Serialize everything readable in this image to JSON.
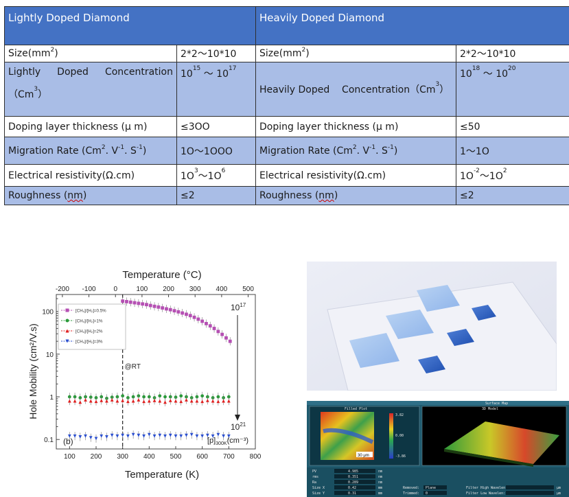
{
  "table": {
    "headers": [
      "Lightly Doped Diamond",
      "Heavily Doped Diamond"
    ],
    "rows": [
      {
        "left_label": "Size(mm",
        "left_label_sup": "2",
        "left_label_tail": ")",
        "left_value": "2*2～10*10",
        "right_label": "Size(mm",
        "right_label_sup": "2",
        "right_label_tail": ")",
        "right_value": "2*2～10*10"
      },
      {
        "left_label_words": [
          "Lightly",
          "Doped",
          "Concentration"
        ],
        "left_unit": "（Cm",
        "left_unit_sup": "3",
        "left_unit_tail": "）",
        "left_value_base1": "10",
        "left_value_sup1": "15",
        "left_value_sep": " ～ ",
        "left_value_base2": "10",
        "left_value_sup2": "17",
        "right_label": "Heavily Doped    Concentration（Cm",
        "right_label_sup": "3",
        "right_label_tail": "）",
        "right_value_base1": "10",
        "right_value_sup1": "18",
        "right_value_sep": " ～ ",
        "right_value_base2": "10",
        "right_value_sup2": "20"
      },
      {
        "left_label": "Doping layer thickness (μ m)",
        "left_value": "≤3OO",
        "right_label": "Doping layer thickness (μ m)",
        "right_value": "≤50"
      },
      {
        "left_label": "Migration Rate (Cm",
        "left_label_sup1": "2",
        "left_label_mid1": ". V",
        "left_label_sup2": "-1",
        "left_label_mid2": ". S",
        "left_label_sup3": "-1",
        "left_label_tail": ")",
        "left_value": "1O～1OOO",
        "right_label": "Migration Rate (Cm",
        "right_label_sup1": "2",
        "right_label_mid1": ". V",
        "right_label_sup2": "-1",
        "right_label_mid2": ". S",
        "right_label_sup3": "-1",
        "right_label_tail": ")",
        "right_value": "1～1O"
      },
      {
        "left_label": "Electrical resistivity(Ω.cm)",
        "left_value_base1": "1O",
        "left_value_sup1": "3",
        "left_value_sep": "～",
        "left_value_base2": "1O",
        "left_value_sup2": "6",
        "right_label": "Electrical resistivity(Ω.cm)",
        "right_value_base1": "1O",
        "right_value_sup1": "-2",
        "right_value_sep": "～",
        "right_value_base2": "1O",
        "right_value_sup2": "2"
      },
      {
        "left_label": "Roughness (",
        "left_label_wavy": "nm",
        "left_label_tail": ")",
        "left_value": "≤2",
        "right_label": "Roughness (",
        "right_label_wavy": "nm",
        "right_label_tail": ")",
        "right_value": "≤2"
      }
    ]
  },
  "chart_data": {
    "type": "scatter",
    "title": "Temperature (°C)",
    "xlabel": "Temperature (K)",
    "ylabel": "Hole  Mobility (cm²/V.s)",
    "top_axis_ticks": [
      -200,
      -100,
      0,
      100,
      200,
      300,
      400,
      500
    ],
    "x_ticks": [
      100,
      200,
      300,
      400,
      500,
      600,
      700,
      800
    ],
    "y_ticks": [
      "0.1",
      "1",
      "10",
      "100"
    ],
    "xlim": [
      50,
      800
    ],
    "ylim_log": [
      0.06,
      250
    ],
    "panel_label": "(b)",
    "rt_annotation": "@RT",
    "rt_x": 300,
    "arrow_top_label": "10",
    "arrow_top_sup": "17",
    "arrow_bottom_label": "10",
    "arrow_bottom_sup": "21",
    "x_note_main": "[p]",
    "x_note_sub": "300K",
    "x_note_unit": "(cm⁻³)",
    "series": [
      {
        "name": "[CH₄]/[H₂]=0.5%",
        "color": "#b54fb3",
        "marker": "square",
        "x": [
          300,
          315,
          330,
          345,
          360,
          375,
          390,
          405,
          420,
          435,
          450,
          465,
          480,
          495,
          510,
          525,
          540,
          555,
          570,
          585,
          600,
          615,
          630,
          645,
          660,
          675,
          690,
          705
        ],
        "y": [
          175,
          170,
          165,
          160,
          155,
          150,
          145,
          138,
          132,
          127,
          121,
          115,
          110,
          104,
          98,
          92,
          86,
          80,
          73,
          66,
          59,
          52,
          46,
          40,
          34,
          29,
          24,
          20
        ]
      },
      {
        "name": "[CH₄]/[H₂]=1%",
        "color": "#2a9a3a",
        "marker": "circle",
        "x": [
          100,
          120,
          140,
          160,
          180,
          200,
          220,
          240,
          260,
          280,
          300,
          320,
          340,
          360,
          380,
          400,
          420,
          440,
          460,
          480,
          500,
          520,
          540,
          560,
          580,
          600,
          620,
          640,
          660,
          680,
          700
        ],
        "y": [
          1.0,
          1.0,
          0.95,
          1.0,
          0.98,
          0.95,
          1.0,
          0.92,
          0.98,
          1.0,
          1.05,
          0.95,
          1.0,
          1.05,
          1.0,
          1.0,
          0.95,
          1.05,
          1.0,
          1.0,
          0.98,
          1.05,
          1.0,
          0.95,
          1.0,
          1.05,
          1.0,
          0.95,
          1.0,
          0.95,
          1.0
        ]
      },
      {
        "name": "[CH₄]/[H₂]=2%",
        "color": "#e02020",
        "marker": "triangle-up",
        "x": [
          100,
          120,
          140,
          160,
          180,
          200,
          220,
          240,
          260,
          280,
          300,
          320,
          340,
          360,
          380,
          400,
          420,
          440,
          460,
          480,
          500,
          520,
          540,
          560,
          580,
          600,
          620,
          640,
          660,
          680,
          700
        ],
        "y": [
          0.8,
          0.8,
          0.75,
          0.85,
          0.8,
          0.78,
          0.82,
          0.8,
          0.85,
          0.8,
          0.82,
          0.78,
          0.8,
          0.85,
          0.78,
          0.8,
          0.82,
          0.8,
          0.75,
          0.82,
          0.8,
          0.78,
          0.85,
          0.8,
          0.8,
          0.78,
          0.82,
          0.8,
          0.78,
          0.8,
          0.8
        ]
      },
      {
        "name": "[CH₄]/[H₂]=3%",
        "color": "#2b4fcf",
        "marker": "triangle-down",
        "x": [
          100,
          120,
          140,
          160,
          180,
          200,
          220,
          240,
          260,
          280,
          300,
          320,
          340,
          360,
          380,
          400,
          420,
          440,
          460,
          480,
          500,
          520,
          540,
          560,
          580,
          600,
          620,
          640,
          660,
          680,
          700
        ],
        "y": [
          0.12,
          0.12,
          0.115,
          0.12,
          0.11,
          0.105,
          0.12,
          0.115,
          0.125,
          0.12,
          0.125,
          0.12,
          0.13,
          0.125,
          0.12,
          0.13,
          0.12,
          0.125,
          0.12,
          0.125,
          0.12,
          0.12,
          0.125,
          0.13,
          0.12,
          0.12,
          0.125,
          0.12,
          0.13,
          0.12,
          0.12
        ]
      }
    ],
    "legend": "upper-left"
  },
  "surface_map": {
    "title": "Surface Map",
    "left_panel_title": "Filled Plot",
    "right_panel_title": "3D Model",
    "scale_label": "30 μm",
    "colorbar_ticks": [
      "3.82",
      "0.00",
      "-3.86"
    ],
    "stats_left_labels": [
      "PV",
      "rms",
      "Ra",
      "Size X",
      "Size Y"
    ],
    "stats_left_values": [
      "4.985",
      "0.351",
      "0.289",
      "0.42",
      "0.31"
    ],
    "stats_left_units": [
      "nm",
      "nm",
      "nm",
      "mm",
      "mm"
    ],
    "stats_mid_labels": [
      "Removed:",
      "Trimmed:"
    ],
    "stats_mid_values": [
      "Plane",
      "0"
    ],
    "stats_right_labels": [
      "Filter High Wavelen:",
      "Filter Low Wavelen:"
    ],
    "stats_right_units": [
      "μm",
      "μm"
    ]
  }
}
